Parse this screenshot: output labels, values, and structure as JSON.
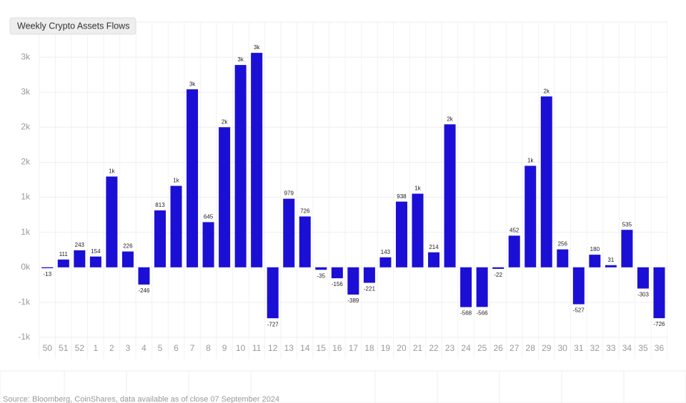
{
  "chart_data": {
    "type": "bar",
    "title": "Weekly Crypto Assets Flows",
    "source": "Source: Bloomberg, CoinShares, data available as of close 07 September 2024",
    "categories": [
      "50",
      "51",
      "52",
      "1",
      "2",
      "3",
      "4",
      "5",
      "6",
      "7",
      "8",
      "9",
      "10",
      "11",
      "12",
      "13",
      "14",
      "15",
      "16",
      "17",
      "18",
      "19",
      "20",
      "21",
      "22",
      "23",
      "24",
      "25",
      "26",
      "27",
      "28",
      "29",
      "30",
      "31",
      "32",
      "33",
      "34",
      "35",
      "36"
    ],
    "values": [
      -13,
      111,
      243,
      154,
      1296,
      226,
      -246,
      813,
      1163,
      2541,
      645,
      2000,
      2888,
      3061,
      -727,
      979,
      726,
      -35,
      -156,
      -389,
      -221,
      143,
      938,
      1051,
      214,
      2041,
      -568,
      -566,
      -22,
      452,
      1449,
      2439,
      256,
      -527,
      180,
      31,
      535,
      -303,
      -726
    ],
    "value_labels": [
      "-13",
      "111",
      "243",
      "154",
      "1k",
      "226",
      "-246",
      "813",
      "1k",
      "3k",
      "645",
      "2k",
      "3k",
      "3k",
      "-727",
      "979",
      "726",
      "-35",
      "-156",
      "-389",
      "-221",
      "143",
      "938",
      "1k",
      "214",
      "2k",
      "-568",
      "-566",
      "-22",
      "452",
      "1k",
      "2k",
      "256",
      "-527",
      "180",
      "31",
      "535",
      "-303",
      "-726"
    ],
    "color": "#1b0fd6",
    "ylim": [
      -1000,
      3500
    ],
    "yticks": [
      {
        "value": -1000,
        "label": "-1k"
      },
      {
        "value": -500,
        "label": "-1k"
      },
      {
        "value": 0,
        "label": "0k"
      },
      {
        "value": 500,
        "label": "1k"
      },
      {
        "value": 1000,
        "label": "1k"
      },
      {
        "value": 1500,
        "label": "2k"
      },
      {
        "value": 2000,
        "label": "2k"
      },
      {
        "value": 2500,
        "label": "3k"
      },
      {
        "value": 3000,
        "label": "3k"
      }
    ],
    "grid": true
  }
}
